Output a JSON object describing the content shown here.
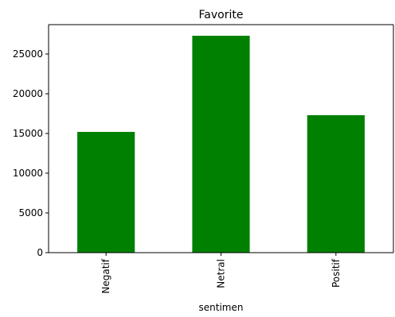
{
  "chart_data": {
    "type": "bar",
    "title": "Favorite",
    "xlabel": "sentimen",
    "ylabel": "",
    "categories": [
      "Negatif",
      "Netral",
      "Positif"
    ],
    "values": [
      15200,
      27300,
      17300
    ],
    "ylim": [
      0,
      28700
    ],
    "yticks": [
      0,
      5000,
      10000,
      15000,
      20000,
      25000
    ],
    "bar_color": "#008000",
    "grid": false,
    "legend": "none"
  }
}
